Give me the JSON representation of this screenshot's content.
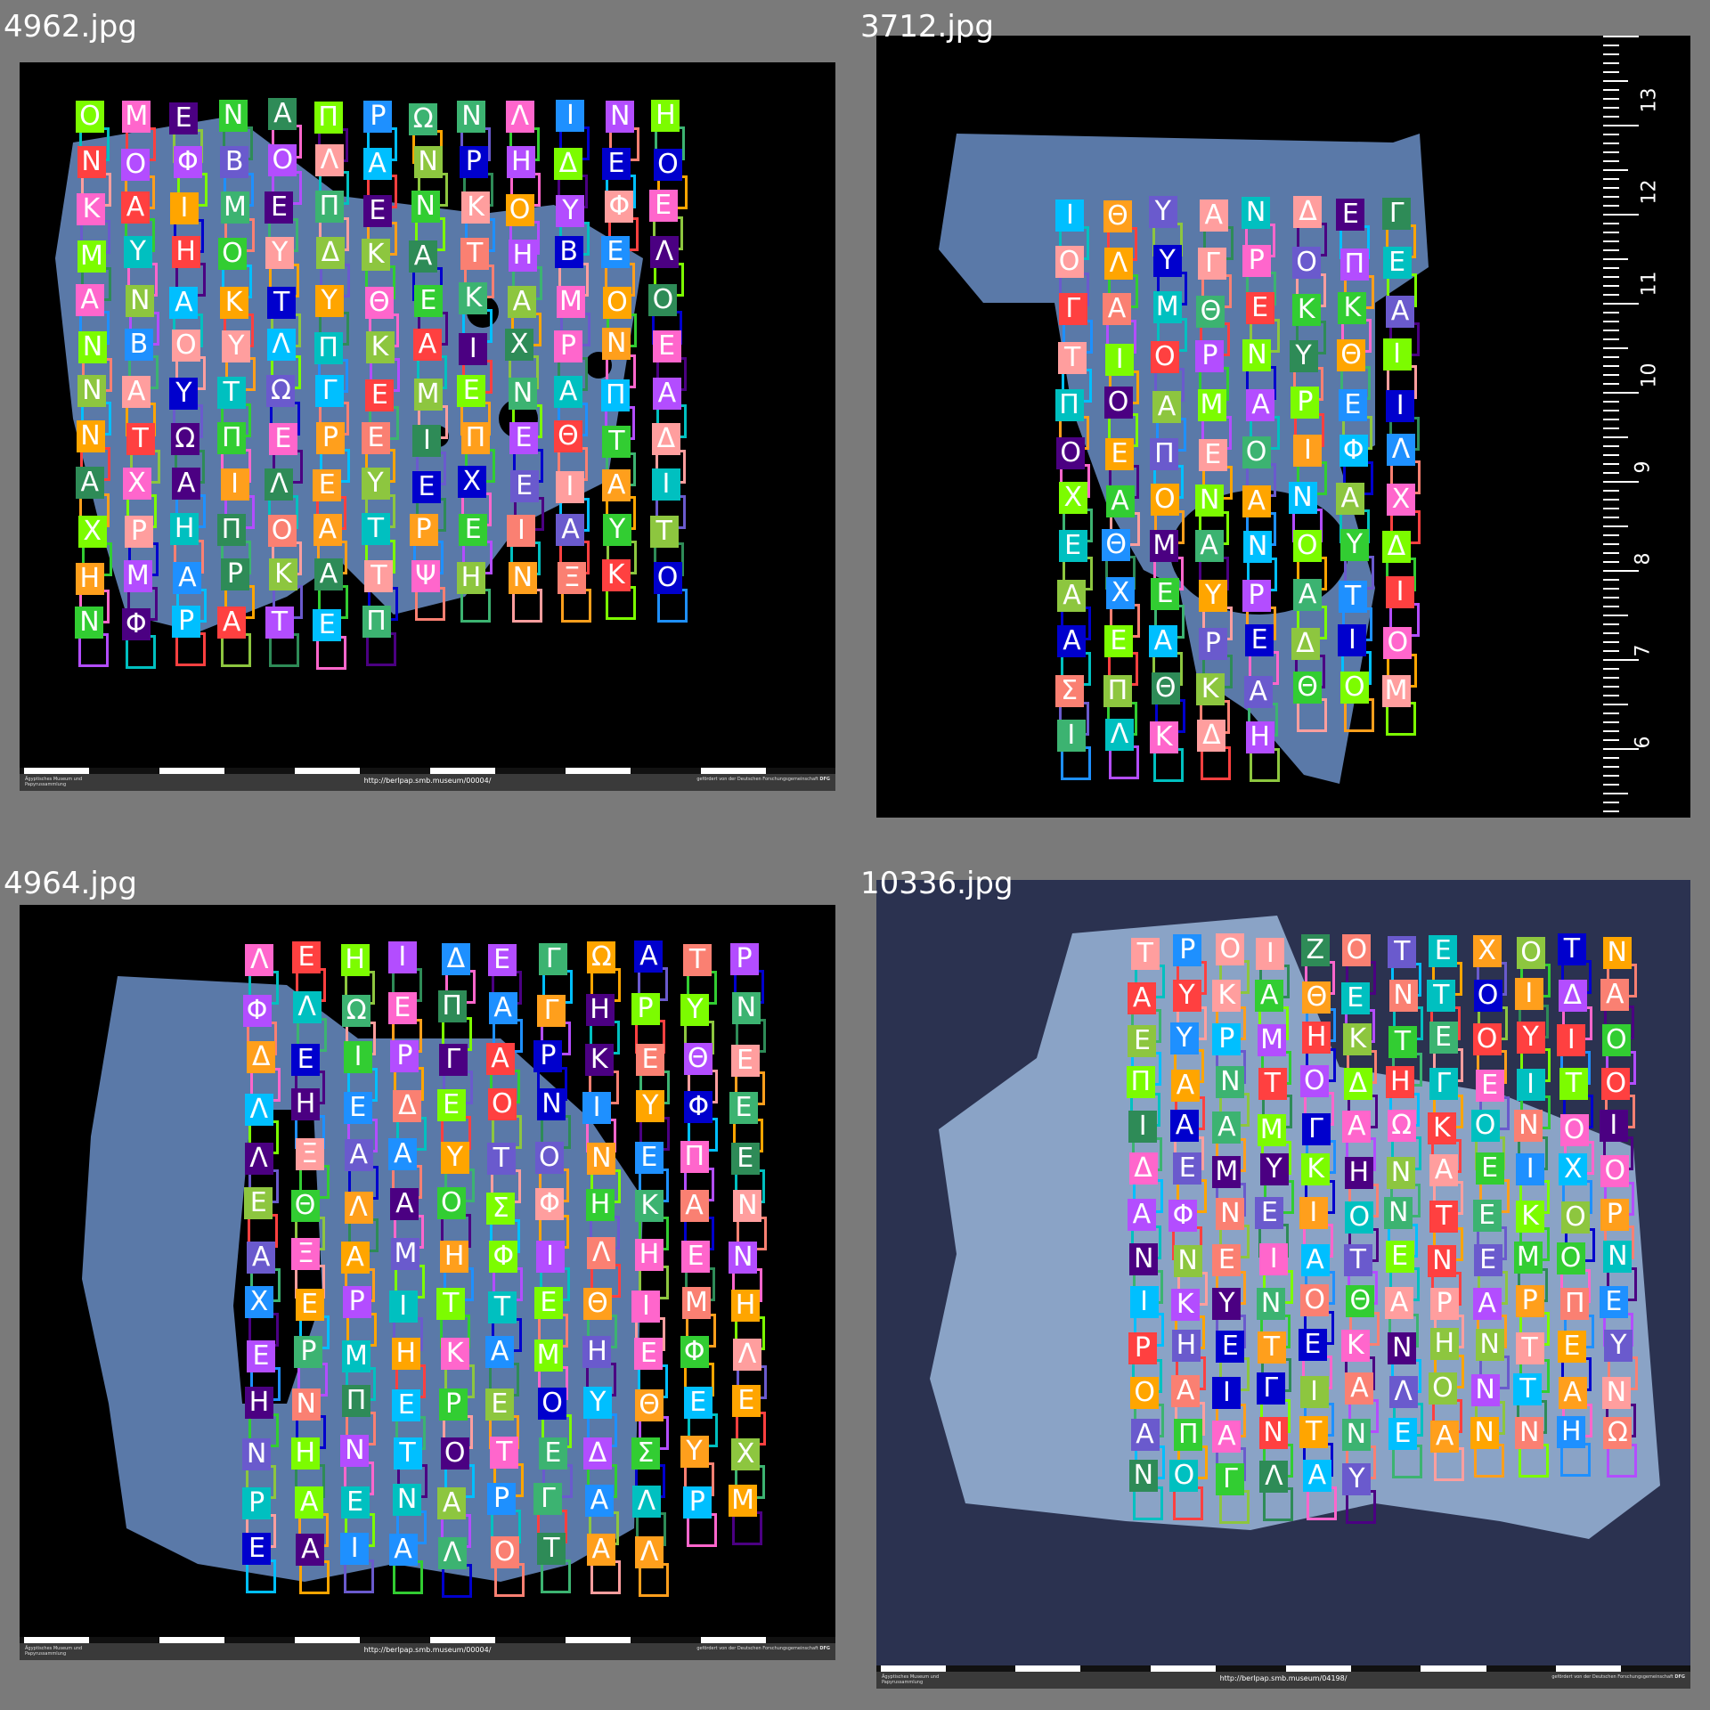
{
  "panels": [
    {
      "filename": "4962.jpg",
      "url": "http://berlpap.smb.museum/00004/",
      "institution": "Ägyptisches Museum und Papyrussammlung",
      "funding": "gefördert von der Deutschen Forschungsgemeinschaft",
      "dfg": "DFG",
      "letters": [
        "Ο",
        "Μ",
        "Ε",
        "Ν",
        "Α",
        "Π",
        "Ρ",
        "Ω",
        "Ν",
        "Λ",
        "Ι",
        "Ν",
        "Η",
        "Ν",
        "Ο",
        "Φ",
        "Β",
        "Ο",
        "Λ",
        "Α",
        "Ν",
        "Ρ",
        "Η",
        "Δ",
        "Ε",
        "Ο",
        "Κ",
        "Α",
        "Ι",
        "Μ",
        "Ε",
        "Π",
        "Ε",
        "Ν",
        "Κ",
        "Ο",
        "Υ",
        "Φ",
        "Ε",
        "Μ",
        "Υ",
        "Η",
        "Ο",
        "Υ",
        "Δ",
        "Κ",
        "Α",
        "Τ",
        "Η",
        "Β",
        "Ε",
        "Λ",
        "Α",
        "Ν",
        "Α",
        "Κ",
        "Τ",
        "Υ",
        "Θ",
        "Ε",
        "Κ",
        "Α",
        "Μ",
        "Ο",
        "Ο",
        "Ν",
        "Β",
        "Ο",
        "Υ",
        "Λ",
        "Π",
        "Κ",
        "Α",
        "Ι",
        "Χ",
        "Ρ",
        "Ν",
        "Ε",
        "Ν",
        "Α",
        "Υ",
        "Τ",
        "Ω",
        "Γ",
        "Ε",
        "Μ",
        "Ε",
        "Ν",
        "Α",
        "Π",
        "Α",
        "Ν",
        "Τ",
        "Ω",
        "Π",
        "Ε",
        "Ρ",
        "Ε",
        "Ι",
        "Π",
        "Ε",
        "Θ",
        "Τ",
        "Δ",
        "Α",
        "Χ",
        "Α",
        "Ι",
        "Λ",
        "Ε",
        "Υ",
        "Ε",
        "Χ",
        "Ε",
        "Ι",
        "Α",
        "Ι",
        "Χ",
        "Ρ",
        "Η",
        "Π",
        "Ο",
        "Α",
        "Τ",
        "Ρ",
        "Ε",
        "Ι",
        "Α",
        "Υ",
        "Τ",
        "Η",
        "Μ",
        "Α",
        "Ρ",
        "Κ",
        "Α",
        "Τ",
        "Ψ",
        "Η",
        "Ν",
        "Ξ",
        "Κ",
        "Ο",
        "Ν",
        "Φ",
        "Ρ",
        "Α",
        "Τ",
        "Ε",
        "Π"
      ]
    },
    {
      "filename": "3712.jpg",
      "ruler_numbers": [
        "13",
        "12",
        "11",
        "10",
        "9",
        "8",
        "7",
        "6"
      ],
      "letters": [
        "Ι",
        "Θ",
        "Υ",
        "Α",
        "Ν",
        "Δ",
        "Ε",
        "Γ",
        "Ο",
        "Λ",
        "Υ",
        "Γ",
        "Ρ",
        "Ο",
        "Π",
        "Ε",
        "Γ",
        "Α",
        "Μ",
        "Θ",
        "Ε",
        "Κ",
        "Κ",
        "Α",
        "Τ",
        "Ι",
        "Ο",
        "Ρ",
        "Ν",
        "Υ",
        "Θ",
        "Ι",
        "Π",
        "Ο",
        "Α",
        "Μ",
        "Α",
        "Ρ",
        "Ε",
        "Ι",
        "Ο",
        "Ε",
        "Π",
        "Ε",
        "Ο",
        "Ι",
        "Φ",
        "Λ",
        "Χ",
        "Α",
        "Ο",
        "Ν",
        "Α",
        "Ν",
        "Α",
        "Χ",
        "Ε",
        "Θ",
        "Μ",
        "Α",
        "Ν",
        "Ο",
        "Υ",
        "Δ",
        "Α",
        "Χ",
        "Ε",
        "Υ",
        "Ρ",
        "Α",
        "Τ",
        "Ι",
        "Α",
        "Ε",
        "Α",
        "Ρ",
        "Ε",
        "Δ",
        "Ι",
        "Ο",
        "Σ",
        "Π",
        "Θ",
        "Κ",
        "Α",
        "Θ",
        "Ο",
        "Μ",
        "Ι",
        "Λ",
        "Κ",
        "Δ",
        "Η"
      ]
    },
    {
      "filename": "4964.jpg",
      "url": "http://berlpap.smb.museum/00004/",
      "institution": "Ägyptisches Museum und Papyrussammlung",
      "funding": "gefördert von der Deutschen Forschungsgemeinschaft",
      "dfg": "DFG",
      "letters": [
        "Λ",
        "Ε",
        "Η",
        "Ι",
        "Δ",
        "Ε",
        "Γ",
        "Ω",
        "Α",
        "Τ",
        "Ρ",
        "Φ",
        "Λ",
        "Ω",
        "Ε",
        "Π",
        "Α",
        "Γ",
        "Η",
        "Ρ",
        "Υ",
        "Ν",
        "Δ",
        "Ε",
        "Ι",
        "Ρ",
        "Γ",
        "Α",
        "Ρ",
        "Κ",
        "Ε",
        "Θ",
        "Ε",
        "Λ",
        "Η",
        "Ε",
        "Δ",
        "Ε",
        "Ο",
        "Ν",
        "Ι",
        "Υ",
        "Φ",
        "Ε",
        "Λ",
        "Ξ",
        "Α",
        "Α",
        "Υ",
        "Τ",
        "Ο",
        "Ν",
        "Ε",
        "Π",
        "Ε",
        "Ε",
        "Θ",
        "Λ",
        "Α",
        "Ο",
        "Σ",
        "Φ",
        "Η",
        "Κ",
        "Α",
        "Ν",
        "Α",
        "Ξ",
        "Α",
        "Μ",
        "Η",
        "Φ",
        "Ι",
        "Λ",
        "Η",
        "Ε",
        "Ν",
        "Χ",
        "Ε",
        "Ρ",
        "Ι",
        "Τ",
        "Τ",
        "Ε",
        "Θ",
        "Ι",
        "Μ",
        "Η",
        "Ε",
        "Ρ",
        "Μ",
        "Η",
        "Κ",
        "Α",
        "Μ",
        "Η",
        "Ε",
        "Φ",
        "Λ",
        "Η",
        "Ν",
        "Π",
        "Ε",
        "Ρ",
        "Ε",
        "Ο",
        "Υ",
        "Θ",
        "Ε",
        "Ε",
        "Ν",
        "Η",
        "Ν",
        "Τ",
        "Ο",
        "Τ",
        "Ε",
        "Δ",
        "Σ",
        "Υ",
        "Χ",
        "Ρ",
        "Α",
        "Ε",
        "Ν",
        "Α",
        "Ρ",
        "Γ",
        "Α",
        "Λ",
        "Ρ",
        "Μ",
        "Ε",
        "Α",
        "Ι",
        "Α",
        "Λ",
        "Ο",
        "Τ",
        "Α",
        "Λ"
      ]
    },
    {
      "filename": "10336.jpg",
      "url": "http://berlpap.smb.museum/04198/",
      "institution": "Ägyptisches Museum und Papyrussammlung",
      "funding": "gefördert von der Deutschen Forschungsgemeinschaft",
      "dfg": "DFG",
      "letters": [
        "Τ",
        "Ρ",
        "Ο",
        "Ι",
        "Ζ",
        "Ο",
        "Τ",
        "Ε",
        "Χ",
        "Ο",
        "Τ",
        "Ν",
        "Α",
        "Υ",
        "Κ",
        "Α",
        "Θ",
        "Ε",
        "Ν",
        "Τ",
        "Ο",
        "Ι",
        "Δ",
        "Α",
        "Ε",
        "Υ",
        "Ρ",
        "Μ",
        "Η",
        "Κ",
        "Τ",
        "Ε",
        "Ο",
        "Υ",
        "Ι",
        "Ο",
        "Π",
        "Α",
        "Ν",
        "Τ",
        "Ο",
        "Δ",
        "Η",
        "Γ",
        "Ε",
        "Ι",
        "Τ",
        "Ο",
        "Ι",
        "Α",
        "Α",
        "Μ",
        "Γ",
        "Α",
        "Ω",
        "Κ",
        "Ο",
        "Ν",
        "Ο",
        "Ι",
        "Δ",
        "Ε",
        "Μ",
        "Υ",
        "Κ",
        "Η",
        "Ν",
        "Α",
        "Ε",
        "Ι",
        "Χ",
        "Ο",
        "Α",
        "Φ",
        "Ν",
        "Ε",
        "Ι",
        "Ο",
        "Ν",
        "Τ",
        "Ε",
        "Κ",
        "Ο",
        "Ρ",
        "Ν",
        "Ν",
        "Ε",
        "Ι",
        "Α",
        "Τ",
        "Ε",
        "Ν",
        "Ε",
        "Μ",
        "Ο",
        "Ν",
        "Ι",
        "Κ",
        "Υ",
        "Ν",
        "Ο",
        "Θ",
        "Α",
        "Ρ",
        "Α",
        "Ρ",
        "Π",
        "Ε",
        "Ρ",
        "Η",
        "Ε",
        "Τ",
        "Ε",
        "Κ",
        "Ν",
        "Η",
        "Ν",
        "Τ",
        "Ε",
        "Υ",
        "Ο",
        "Α",
        "Ι",
        "Γ",
        "Ι",
        "Α",
        "Λ",
        "Ο",
        "Ν",
        "Τ",
        "Α",
        "Ν",
        "Α",
        "Π",
        "Α",
        "Ν",
        "Τ",
        "Ν",
        "Ε",
        "Α",
        "Ν",
        "Ν",
        "Η",
        "Ω",
        "Ν",
        "Ο",
        "Γ",
        "Λ",
        "Α",
        "Υ"
      ]
    }
  ],
  "colors": {
    "background": "#7a7a7a",
    "papyrus": "#5a79a8",
    "papyrus_light": "#8aa3c6",
    "box_palette": [
      "#ff9e9e",
      "#ff9f1c",
      "#7cfc00",
      "#1e90ff",
      "#b34dff",
      "#00c0c0",
      "#ff4040",
      "#8dc63f",
      "#2e8b57",
      "#ff66cc",
      "#4b0082",
      "#00bfff",
      "#ffa500",
      "#6a5acd",
      "#32cd32",
      "#0000cd",
      "#fa8072",
      "#3cb371"
    ]
  }
}
